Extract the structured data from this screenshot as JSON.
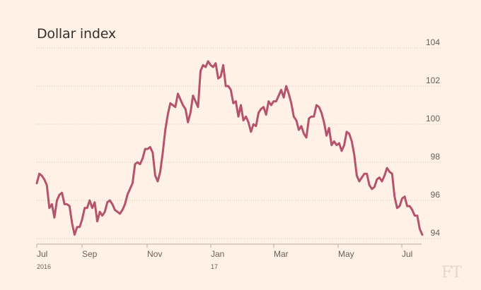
{
  "chart_data": {
    "type": "line",
    "title": "Dollar index",
    "ylim": [
      93.5,
      104.5
    ],
    "y_ticks": [
      "94",
      "96",
      "98",
      "100",
      "102",
      "104"
    ],
    "x_ticks": [
      "Jul",
      "Sep",
      "Nov",
      "Jan",
      "Mar",
      "May",
      "Jul"
    ],
    "x_tick_sublabels": [
      "2016",
      "17"
    ],
    "grid": "horizontal dotted",
    "series": [
      {
        "color": "#b5536c",
        "values": [
          96.9,
          97.4,
          97.3,
          97.1,
          96.8,
          95.6,
          95.8,
          95.1,
          96.0,
          96.3,
          96.4,
          95.8,
          95.8,
          95.7,
          94.8,
          94.2,
          94.6,
          94.6,
          95.0,
          95.6,
          95.6,
          96.0,
          95.6,
          95.9,
          94.9,
          95.4,
          95.2,
          95.4,
          95.9,
          96.0,
          95.8,
          95.5,
          95.4,
          95.3,
          95.5,
          95.8,
          96.3,
          96.6,
          96.9,
          97.9,
          98.0,
          97.9,
          98.2,
          98.7,
          98.7,
          98.8,
          98.5,
          97.3,
          97.0,
          97.5,
          98.5,
          99.7,
          100.5,
          101.1,
          101.0,
          100.9,
          101.6,
          101.3,
          101.0,
          100.8,
          100.1,
          100.6,
          101.5,
          101.2,
          100.9,
          102.8,
          103.1,
          103.0,
          103.3,
          103.1,
          103.0,
          103.2,
          102.4,
          102.5,
          103.1,
          102.0,
          102.0,
          101.8,
          101.1,
          101.2,
          100.4,
          101.0,
          100.2,
          100.4,
          100.1,
          99.6,
          100.0,
          99.9,
          100.6,
          100.8,
          100.9,
          100.5,
          101.2,
          101.0,
          101.2,
          101.2,
          101.5,
          101.8,
          101.4,
          102.0,
          101.6,
          101.1,
          100.4,
          100.2,
          99.7,
          99.9,
          99.5,
          99.3,
          100.3,
          100.4,
          100.4,
          101.0,
          100.9,
          100.6,
          100.1,
          99.4,
          99.8,
          98.9,
          99.1,
          98.9,
          99.0,
          98.6,
          98.9,
          99.6,
          99.5,
          99.1,
          98.4,
          97.3,
          97.0,
          97.2,
          97.4,
          97.4,
          96.8,
          96.6,
          96.7,
          97.1,
          97.2,
          97.0,
          97.3,
          97.7,
          97.5,
          97.4,
          96.2,
          95.6,
          95.7,
          96.1,
          96.2,
          95.7,
          95.7,
          95.5,
          95.2,
          95.2,
          94.5,
          94.2
        ]
      }
    ]
  }
}
